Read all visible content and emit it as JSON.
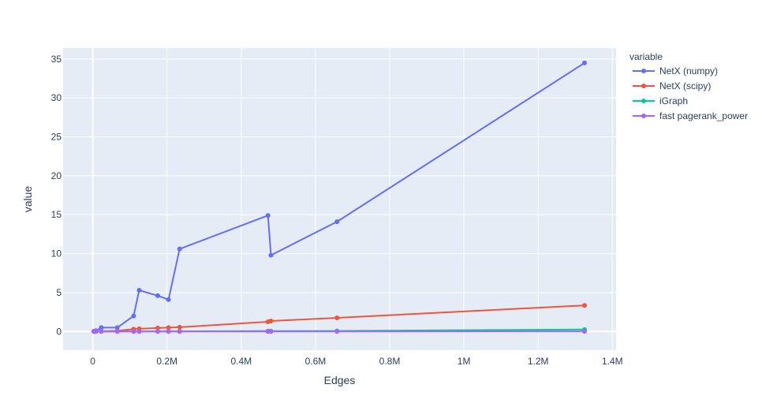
{
  "chart_data": {
    "type": "line",
    "xlabel": "Edges",
    "ylabel": "value",
    "legend_title": "variable",
    "legend_position": "top-right",
    "grid": true,
    "xlim": [
      -80000,
      1410000
    ],
    "ylim": [
      -2.4,
      36.4
    ],
    "x_ticks": [
      0,
      200000,
      400000,
      600000,
      800000,
      1000000,
      1200000,
      1400000
    ],
    "x_tick_labels": [
      "0",
      "0.2M",
      "0.4M",
      "0.6M",
      "0.8M",
      "1M",
      "1.2M",
      "1.4M"
    ],
    "y_ticks": [
      0,
      5,
      10,
      15,
      20,
      25,
      30,
      35
    ],
    "y_tick_labels": [
      "0",
      "5",
      "10",
      "15",
      "20",
      "25",
      "30",
      "35"
    ],
    "series": [
      {
        "name": "NetX (numpy)",
        "color": "#636efa",
        "x": [
          3000,
          8000,
          23000,
          66000,
          110000,
          125000,
          175000,
          204000,
          234000,
          472000,
          480000,
          658000,
          1325000
        ],
        "y": [
          0.05,
          0.1,
          0.5,
          0.5,
          2.0,
          5.3,
          4.6,
          4.1,
          10.6,
          14.9,
          9.8,
          14.1,
          34.5
        ]
      },
      {
        "name": "NetX (scipy)",
        "color": "#ef553b",
        "x": [
          3000,
          8000,
          23000,
          66000,
          110000,
          125000,
          175000,
          204000,
          234000,
          472000,
          480000,
          658000,
          1325000
        ],
        "y": [
          0.0,
          0.01,
          0.03,
          0.08,
          0.3,
          0.35,
          0.45,
          0.5,
          0.55,
          1.25,
          1.35,
          1.75,
          3.35
        ]
      },
      {
        "name": "iGraph",
        "color": "#00cc96",
        "x": [
          3000,
          8000,
          23000,
          66000,
          110000,
          125000,
          175000,
          204000,
          234000,
          472000,
          480000,
          658000,
          1325000
        ],
        "y": [
          0.0,
          0.0,
          0.0,
          0.01,
          0.01,
          0.01,
          0.02,
          0.02,
          0.02,
          0.05,
          0.05,
          0.07,
          0.25
        ]
      },
      {
        "name": "fast pagerank_power",
        "color": "#ab63fa",
        "x": [
          3000,
          8000,
          23000,
          66000,
          110000,
          125000,
          175000,
          204000,
          234000,
          472000,
          480000,
          658000,
          1325000
        ],
        "y": [
          0.0,
          0.0,
          0.0,
          0.0,
          0.0,
          0.0,
          0.0,
          0.0,
          0.0,
          0.0,
          0.0,
          0.0,
          0.02
        ]
      }
    ]
  },
  "style": {
    "plot_bg": "#e5ecf6",
    "grid_color": "#ffffff",
    "text_color": "#2a3f5f"
  }
}
